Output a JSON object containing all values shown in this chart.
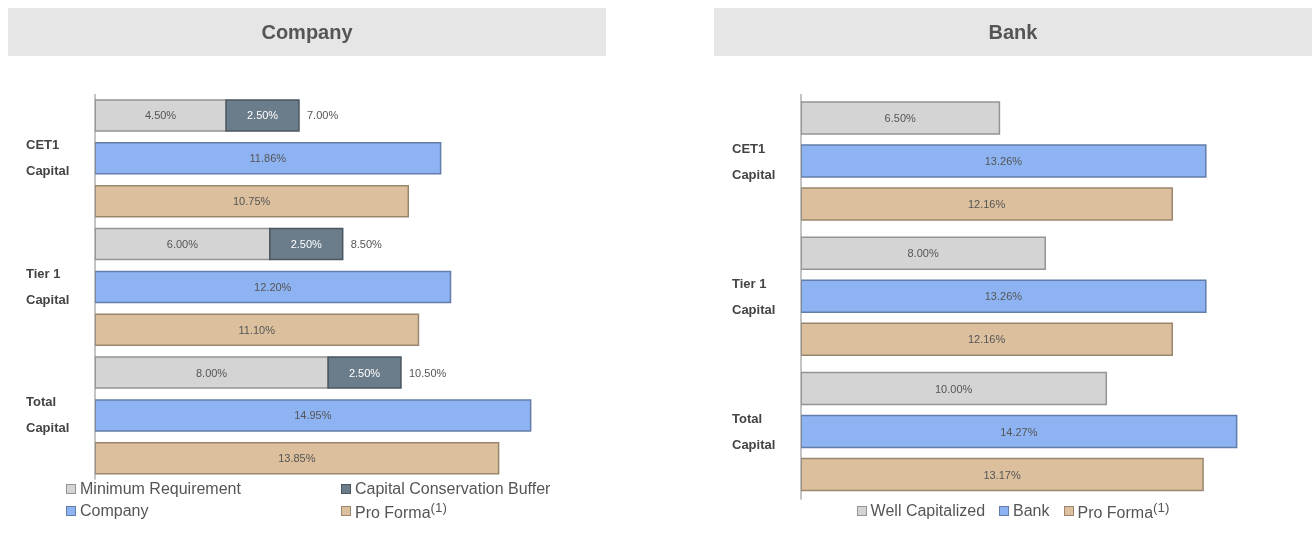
{
  "chart_data": [
    {
      "type": "bar",
      "title": "Company",
      "orientation": "horizontal",
      "stacked": true,
      "categories": [
        null,
        "CET1 Capital",
        null,
        null,
        "Tier 1 Capital",
        null,
        null,
        "Total Capital",
        null
      ],
      "legend": "bottom",
      "totals": [
        "7.00%",
        null,
        null,
        "8.50%",
        null,
        null,
        "10.50%",
        null,
        null
      ],
      "series": [
        {
          "name": "Minimum Requirement",
          "color": "#d4d4d4",
          "values": [
            4.5,
            null,
            null,
            6.0,
            null,
            null,
            8.0,
            null,
            null
          ],
          "value_labels": [
            "4.50%",
            null,
            null,
            "6.00%",
            null,
            null,
            "8.00%",
            null,
            null
          ]
        },
        {
          "name": "Capital Conservation Buffer",
          "color": "#6b7c8a",
          "values": [
            2.5,
            null,
            null,
            2.5,
            null,
            null,
            2.5,
            null,
            null
          ],
          "value_labels": [
            "2.50%",
            null,
            null,
            "2.50%",
            null,
            null,
            "2.50%",
            null,
            null
          ]
        },
        {
          "name": "Company",
          "color": "#8db3f2",
          "values": [
            null,
            11.86,
            null,
            null,
            12.2,
            null,
            null,
            14.95,
            null
          ],
          "value_labels": [
            null,
            "11.86%",
            null,
            null,
            "12.20%",
            null,
            null,
            "14.95%",
            null
          ]
        },
        {
          "name": "Pro Forma$^{(1)}$",
          "color": "#dcc09e",
          "values": [
            null,
            null,
            10.75,
            null,
            null,
            11.1,
            null,
            null,
            13.85
          ],
          "value_labels": [
            null,
            null,
            "10.75%",
            null,
            null,
            "11.10%",
            null,
            null,
            "13.85%"
          ]
        }
      ]
    },
    {
      "type": "bar",
      "title": "Bank",
      "orientation": "horizontal",
      "categories": [
        "CET1 Capital",
        "Tier 1 Capital",
        "Total Capital"
      ],
      "legend": "bottom",
      "series": [
        {
          "name": "Well Capitalized",
          "color": "#d4d4d4",
          "values": [
            6.5,
            8.0,
            10.0
          ],
          "value_labels": [
            "6.50%",
            "8.00%",
            "10.00%"
          ]
        },
        {
          "name": "Bank",
          "color": "#8db3f2",
          "values": [
            13.26,
            13.26,
            14.27
          ],
          "value_labels": [
            "13.26%",
            "13.26%",
            "14.27%"
          ]
        },
        {
          "name": "Pro Forma$^{(1)}$",
          "color": "#dcc09e",
          "values": [
            12.16,
            12.16,
            13.17
          ],
          "value_labels": [
            "12.16%",
            "12.16%",
            "13.17%"
          ]
        }
      ]
    }
  ]
}
